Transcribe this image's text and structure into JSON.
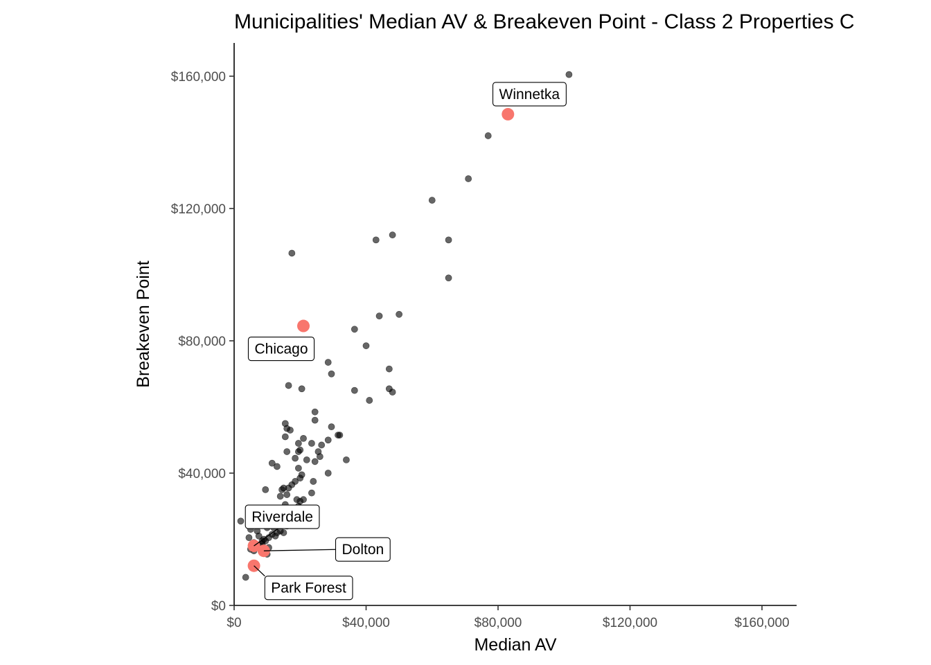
{
  "chart_data": {
    "type": "scatter",
    "title": "Municipalities' Median AV & Breakeven Point - Class 2 Properties C",
    "xlabel": "Median AV",
    "ylabel": "Breakeven Point",
    "xlim": [
      0,
      170000
    ],
    "ylim": [
      0,
      170000
    ],
    "x_ticks": [
      0,
      40000,
      80000,
      120000,
      160000
    ],
    "x_tick_labels": [
      "$0",
      "$40,000",
      "$80,000",
      "$120,000",
      "$160,000"
    ],
    "y_ticks": [
      0,
      40000,
      80000,
      120000,
      160000
    ],
    "y_tick_labels": [
      "$0",
      "$40,000",
      "$80,000",
      "$120,000",
      "$160,000"
    ],
    "grid": false,
    "legend": "none",
    "colors": {
      "points": "#000000",
      "highlight": "#f8766d"
    },
    "series": [
      {
        "values": [
          [
            101500,
            160500
          ],
          [
            77000,
            142000
          ],
          [
            71000,
            129000
          ],
          [
            60000,
            122500
          ],
          [
            65000,
            110500
          ],
          [
            43000,
            110500
          ],
          [
            48000,
            112000
          ],
          [
            17500,
            106500
          ],
          [
            65000,
            99000
          ],
          [
            44000,
            87500
          ],
          [
            50000,
            88000
          ],
          [
            36500,
            83500
          ],
          [
            40000,
            78500
          ],
          [
            28500,
            73500
          ],
          [
            47000,
            71500
          ],
          [
            29500,
            70000
          ],
          [
            16500,
            66500
          ],
          [
            20500,
            65500
          ],
          [
            47000,
            65500
          ],
          [
            48000,
            64500
          ],
          [
            36500,
            65000
          ],
          [
            41000,
            62000
          ],
          [
            24500,
            58500
          ],
          [
            24500,
            56000
          ],
          [
            15500,
            55000
          ],
          [
            16000,
            53500
          ],
          [
            17000,
            53000
          ],
          [
            29500,
            54000
          ],
          [
            32000,
            51500
          ],
          [
            31500,
            51500
          ],
          [
            15500,
            51000
          ],
          [
            21000,
            50500
          ],
          [
            28500,
            50000
          ],
          [
            19500,
            49000
          ],
          [
            23500,
            49000
          ],
          [
            26500,
            48500
          ],
          [
            16000,
            46500
          ],
          [
            19500,
            46500
          ],
          [
            20000,
            47000
          ],
          [
            25500,
            46500
          ],
          [
            26000,
            45000
          ],
          [
            18500,
            44500
          ],
          [
            22000,
            44000
          ],
          [
            11500,
            43000
          ],
          [
            24500,
            43500
          ],
          [
            34000,
            44000
          ],
          [
            13000,
            42000
          ],
          [
            19500,
            41500
          ],
          [
            20500,
            39500
          ],
          [
            20000,
            38500
          ],
          [
            18500,
            37500
          ],
          [
            24000,
            37500
          ],
          [
            17500,
            36500
          ],
          [
            16500,
            35500
          ],
          [
            14500,
            35000
          ],
          [
            9500,
            35000
          ],
          [
            15000,
            35500
          ],
          [
            28500,
            40000
          ],
          [
            16000,
            33500
          ],
          [
            23500,
            34000
          ],
          [
            19000,
            32000
          ],
          [
            21000,
            32000
          ],
          [
            14000,
            33000
          ],
          [
            20000,
            31500
          ],
          [
            15500,
            30500
          ],
          [
            19500,
            30000
          ],
          [
            15000,
            28500
          ],
          [
            17000,
            27500
          ],
          [
            14500,
            26500
          ],
          [
            16000,
            26000
          ],
          [
            11000,
            26500
          ],
          [
            12500,
            25500
          ],
          [
            16000,
            24000
          ],
          [
            13500,
            24500
          ],
          [
            10000,
            23500
          ],
          [
            12000,
            23500
          ],
          [
            14000,
            22500
          ],
          [
            15000,
            22000
          ],
          [
            13000,
            22000
          ],
          [
            11500,
            21500
          ],
          [
            12500,
            21000
          ],
          [
            10500,
            20500
          ],
          [
            9000,
            20000
          ],
          [
            8500,
            19500
          ],
          [
            9500,
            19500
          ],
          [
            4500,
            20500
          ],
          [
            5000,
            23000
          ],
          [
            7000,
            22500
          ],
          [
            7500,
            21000
          ],
          [
            6000,
            19000
          ],
          [
            8000,
            18000
          ],
          [
            8500,
            18500
          ],
          [
            10500,
            17500
          ],
          [
            9500,
            17000
          ],
          [
            5000,
            17000
          ],
          [
            6000,
            16500
          ],
          [
            10000,
            15500
          ],
          [
            9500,
            16500
          ],
          [
            2000,
            25500
          ],
          [
            3500,
            8500
          ]
        ]
      },
      {
        "values": [
          [
            83000,
            148500
          ],
          [
            21000,
            84500
          ],
          [
            6000,
            18000
          ],
          [
            9000,
            16500
          ],
          [
            6000,
            12000
          ]
        ]
      }
    ],
    "annotations": [
      {
        "text": "Winnetka",
        "x": 83000,
        "y": 148500
      },
      {
        "text": "Chicago",
        "x": 21000,
        "y": 84500
      },
      {
        "text": "Riverdale",
        "x": 6000,
        "y": 18000
      },
      {
        "text": "Dolton",
        "x": 9000,
        "y": 16500
      },
      {
        "text": "Park Forest",
        "x": 6000,
        "y": 12000
      }
    ]
  }
}
